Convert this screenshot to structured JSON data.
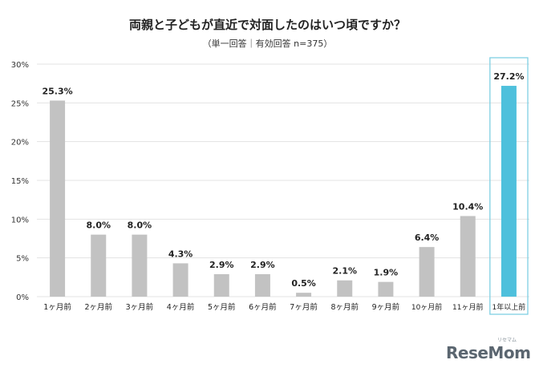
{
  "chart_data": {
    "type": "bar",
    "title": "両親と子どもが直近で対面したのはいつ頃ですか？",
    "subtitle": "（単一回答｜有効回答 n=375）",
    "categories": [
      "1ヶ月前",
      "2ヶ月前",
      "3ヶ月前",
      "4ヶ月前",
      "5ヶ月前",
      "6ヶ月前",
      "7ヶ月前",
      "8ヶ月前",
      "9ヶ月前",
      "10ヶ月前",
      "11ヶ月前",
      "1年以上前"
    ],
    "values": [
      25.3,
      8.0,
      8.0,
      4.3,
      2.9,
      2.9,
      0.5,
      2.1,
      1.9,
      6.4,
      10.4,
      27.2
    ],
    "value_labels": [
      "25.3%",
      "8.0%",
      "8.0%",
      "4.3%",
      "2.9%",
      "2.9%",
      "0.5%",
      "2.1%",
      "1.9%",
      "6.4%",
      "10.4%",
      "27.2%"
    ],
    "ylim": [
      0,
      30
    ],
    "yticks": [
      "0%",
      "5%",
      "10%",
      "15%",
      "20%",
      "25%",
      "30%"
    ],
    "grid": true,
    "highlight_index": 11,
    "colors": {
      "bar": "#c2c2c2",
      "highlight": "#4ec0dc",
      "highlight_border": "#7fcfe3",
      "grid": "#e3e3e3"
    }
  },
  "watermark": {
    "logo": "ReseMom",
    "kana": "リセマム"
  }
}
